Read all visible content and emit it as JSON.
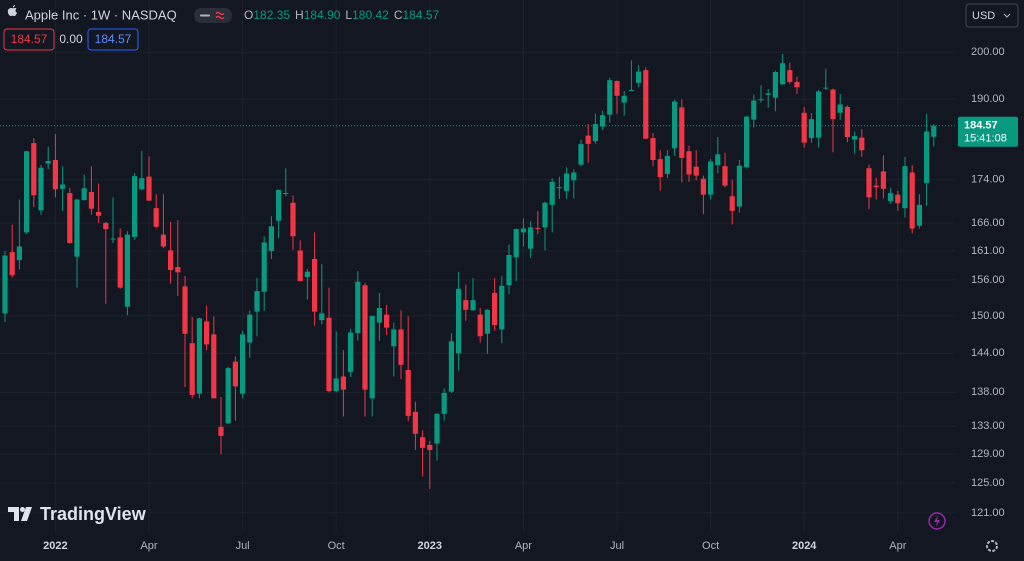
{
  "header": {
    "title": "Apple Inc · 1W · NASDAQ",
    "ohlc": [
      {
        "label": "O",
        "value": "182.35"
      },
      {
        "label": "H",
        "value": "184.90"
      },
      {
        "label": "L",
        "value": "180.42"
      },
      {
        "label": "C",
        "value": "184.57"
      }
    ],
    "change_boxes": [
      "184.57",
      "0.00",
      "184.57"
    ],
    "currency": "USD",
    "logo": "TradingView",
    "countdown": "15:41:08"
  },
  "chart_data": {
    "type": "candlestick",
    "log_scale": true,
    "grid": true,
    "up_color": "#089981",
    "down_color": "#f23645",
    "price_line_color": "#089981",
    "last_price": 184.57,
    "ylim": [
      118.5,
      211.7
    ],
    "yticks": [
      {
        "value": 121,
        "label": "121.00"
      },
      {
        "value": 125,
        "label": "125.00"
      },
      {
        "value": 129,
        "label": "129.00"
      },
      {
        "value": 133,
        "label": "133.00"
      },
      {
        "value": 138,
        "label": "138.00"
      },
      {
        "value": 144,
        "label": "144.00"
      },
      {
        "value": 150,
        "label": "150.00"
      },
      {
        "value": 156,
        "label": "156.00"
      },
      {
        "value": 161,
        "label": "161.00"
      },
      {
        "value": 166,
        "label": "166.00"
      },
      {
        "value": 174,
        "label": "174.00"
      },
      {
        "value": 190,
        "label": "190.00"
      },
      {
        "value": 200,
        "label": "200.00"
      }
    ],
    "categories": [
      null,
      null,
      null,
      null,
      null,
      null,
      null,
      "2022",
      null,
      null,
      null,
      null,
      null,
      null,
      null,
      null,
      null,
      null,
      null,
      null,
      "Apr",
      null,
      null,
      null,
      null,
      null,
      null,
      null,
      null,
      null,
      null,
      null,
      null,
      "Jul",
      null,
      null,
      null,
      null,
      null,
      null,
      null,
      null,
      null,
      null,
      null,
      null,
      "Oct",
      null,
      null,
      null,
      null,
      null,
      null,
      null,
      null,
      null,
      null,
      null,
      null,
      "2023",
      null,
      null,
      null,
      null,
      null,
      null,
      null,
      null,
      null,
      null,
      null,
      null,
      "Apr",
      null,
      null,
      null,
      null,
      null,
      null,
      null,
      null,
      null,
      null,
      null,
      null,
      "Jul",
      null,
      null,
      null,
      null,
      null,
      null,
      null,
      null,
      null,
      null,
      null,
      null,
      "Oct",
      null,
      null,
      null,
      null,
      null,
      null,
      null,
      null,
      null,
      null,
      null,
      null,
      "2024",
      null,
      null,
      null,
      null,
      null,
      null,
      null,
      null,
      null,
      null,
      null,
      null,
      "Apr",
      null,
      null,
      null,
      null,
      null
    ],
    "open": [
      150.4,
      160.8,
      159.4,
      164.3,
      181.1,
      168.3,
      177.1,
      177.8,
      172.3,
      171.5,
      160.0,
      170.2,
      171.7,
      168.0,
      166.0,
      163.1,
      163.4,
      151.5,
      163.5,
      172.2,
      174.6,
      168.7,
      163.9,
      161.1,
      158.2,
      154.9,
      145.6,
      137.8,
      149.1,
      147.0,
      132.9,
      133.4,
      142.7,
      137.8,
      145.7,
      150.7,
      154.0,
      161.0,
      166.4,
      171.5,
      169.7,
      161.1,
      156.5,
      159.6,
      149.3,
      149.7,
      138.2,
      140.4,
      141.1,
      147.2,
      155.1,
      137.1,
      148.9,
      150.2,
      145.1,
      147.8,
      141.4,
      135.1,
      131.4,
      130.3,
      130.5,
      134.8,
      138.1,
      144.0,
      152.6,
      150.9,
      150.2,
      147.1,
      153.8,
      147.8,
      155.1,
      159.9,
      164.3,
      161.4,
      165.1,
      165.2,
      169.3,
      172.5,
      171.9,
      173.9,
      176.9,
      182.6,
      181.5,
      184.4,
      186.8,
      193.8,
      189.3,
      191.9,
      193.4,
      196.1,
      182.1,
      177.97,
      175.1,
      180.1,
      188.3,
      179.5,
      176.5,
      174.2,
      171.2,
      176.8,
      176.6,
      170.9,
      169.0,
      176.4,
      185.8,
      189.9,
      190.9,
      190.3,
      193.1,
      196.1,
      193.6,
      187.2,
      182.1,
      182.2,
      192.3,
      192.0,
      187.2,
      188.4,
      181.8,
      182.2,
      176.2,
      172.9,
      175.6,
      170.0,
      171.2,
      168.7,
      175.4,
      165.5,
      173.4,
      182.35
    ],
    "high": [
      161.0,
      165.7,
      170.3,
      179.6,
      182.1,
      176.8,
      180.4,
      182.9,
      176.6,
      172.5,
      170.4,
      175.0,
      176.6,
      173.3,
      166.2,
      170.7,
      165.0,
      164.5,
      175.3,
      179.6,
      178.5,
      171.3,
      171.3,
      166.2,
      166.5,
      156.7,
      149.8,
      149.7,
      151.7,
      149.9,
      137.3,
      141.9,
      143.5,
      147.6,
      150.9,
      156.3,
      163.6,
      167.2,
      172.2,
      176.2,
      171.1,
      162.9,
      157.9,
      164.3,
      158.7,
      154.7,
      147.5,
      144.5,
      147.9,
      157.5,
      155.5,
      150.0,
      153.8,
      151.8,
      148.9,
      150.9,
      149.9,
      136.6,
      132.4,
      130.9,
      134.9,
      138.6,
      147.2,
      157.4,
      155.2,
      156.3,
      151.3,
      151.1,
      156.3,
      156.7,
      162.1,
      165.0,
      166.8,
      166.3,
      168.2,
      169.9,
      174.3,
      174.6,
      176.4,
      176.0,
      181.8,
      184.9,
      186.99,
      187.6,
      194.5,
      193.9,
      191.7,
      198.2,
      197.2,
      196.7,
      183.1,
      179.7,
      179.7,
      189.9,
      189.98,
      180.6,
      179.7,
      174.8,
      177.99,
      182.3,
      179.2,
      174.0,
      177.8,
      186.6,
      190.96,
      192.9,
      192.1,
      195.99,
      199.6,
      197.7,
      194.7,
      188.4,
      187.1,
      191.95,
      196.4,
      192.2,
      191.1,
      188.7,
      183.4,
      183.9,
      176.9,
      174.4,
      178.7,
      172.5,
      171.9,
      178.4,
      176.8,
      171.3,
      187.0,
      184.9
    ],
    "low": [
      149.0,
      156.4,
      157.8,
      164.0,
      168.9,
      167.5,
      176.0,
      170.7,
      168.2,
      162.3,
      154.7,
      170.1,
      167.5,
      166.0,
      152.0,
      162.4,
      154.5,
      150.1,
      163.0,
      172.0,
      170.0,
      165.0,
      161.5,
      155.4,
      153.3,
      138.8,
      137.1,
      137.1,
      144.5,
      137.1,
      129.0,
      133.3,
      133.8,
      137.1,
      143.3,
      146.7,
      150.8,
      159.6,
      163.3,
      170.9,
      161.2,
      155.8,
      152.7,
      148.4,
      148.6,
      138.0,
      138.0,
      134.4,
      140.3,
      146.0,
      134.4,
      134.4,
      146.0,
      146.9,
      140.4,
      140.0,
      133.7,
      129.6,
      125.9,
      124.2,
      128.1,
      133.8,
      137.9,
      141.3,
      149.2,
      150.9,
      145.7,
      143.9,
      147.6,
      145.6,
      153.6,
      155.8,
      161.8,
      159.8,
      164.0,
      161.1,
      164.3,
      170.4,
      170.4,
      170.5,
      176.6,
      177.3,
      181.0,
      183.7,
      185.2,
      187.0,
      186.6,
      191.8,
      192.5,
      181.9,
      176.6,
      171.96,
      174.3,
      178.6,
      173.5,
      173.6,
      173.9,
      167.6,
      170.3,
      175.2,
      172.6,
      165.7,
      167.9,
      176.2,
      184.2,
      189.3,
      188.2,
      187.5,
      192.97,
      193.2,
      191.1,
      180.2,
      181.2,
      180.2,
      191.9,
      179.3,
      185.8,
      181.3,
      179.0,
      178.4,
      168.5,
      170.3,
      170.5,
      169.5,
      168.2,
      167.0,
      164.1,
      165.0,
      169.1,
      180.42
    ],
    "close": [
      160.2,
      156.8,
      161.8,
      179.5,
      171.1,
      176.3,
      177.6,
      172.2,
      173.1,
      162.4,
      170.3,
      172.4,
      168.6,
      167.3,
      164.9,
      163.2,
      154.7,
      163.9,
      174.7,
      174.3,
      170.1,
      165.3,
      161.8,
      157.7,
      157.3,
      147.1,
      137.6,
      149.6,
      145.4,
      137.1,
      131.6,
      141.7,
      138.9,
      147.0,
      150.2,
      154.1,
      162.5,
      165.4,
      172.1,
      171.5,
      163.6,
      155.8,
      157.4,
      150.7,
      150.4,
      138.2,
      140.1,
      138.4,
      147.3,
      155.7,
      138.4,
      150.0,
      151.3,
      148.1,
      147.8,
      142.2,
      134.5,
      131.9,
      129.9,
      129.6,
      134.8,
      137.9,
      145.9,
      154.5,
      151.0,
      152.6,
      146.7,
      151.0,
      148.5,
      155.0,
      160.3,
      164.9,
      165.0,
      165.2,
      165.0,
      169.7,
      173.6,
      172.6,
      175.2,
      175.4,
      180.9,
      180.96,
      184.9,
      186.7,
      193.97,
      190.7,
      190.7,
      191.9,
      195.8,
      181.99,
      177.8,
      174.5,
      178.6,
      189.5,
      178.2,
      175.0,
      174.8,
      171.2,
      177.5,
      178.9,
      172.9,
      168.2,
      176.7,
      186.4,
      189.7,
      189.97,
      191.2,
      195.7,
      197.6,
      193.6,
      192.5,
      181.2,
      185.9,
      191.6,
      192.4,
      185.9,
      188.9,
      182.3,
      182.5,
      179.7,
      170.7,
      172.6,
      172.3,
      171.5,
      169.6,
      176.6,
      165.0,
      169.3,
      183.4,
      184.57
    ]
  }
}
